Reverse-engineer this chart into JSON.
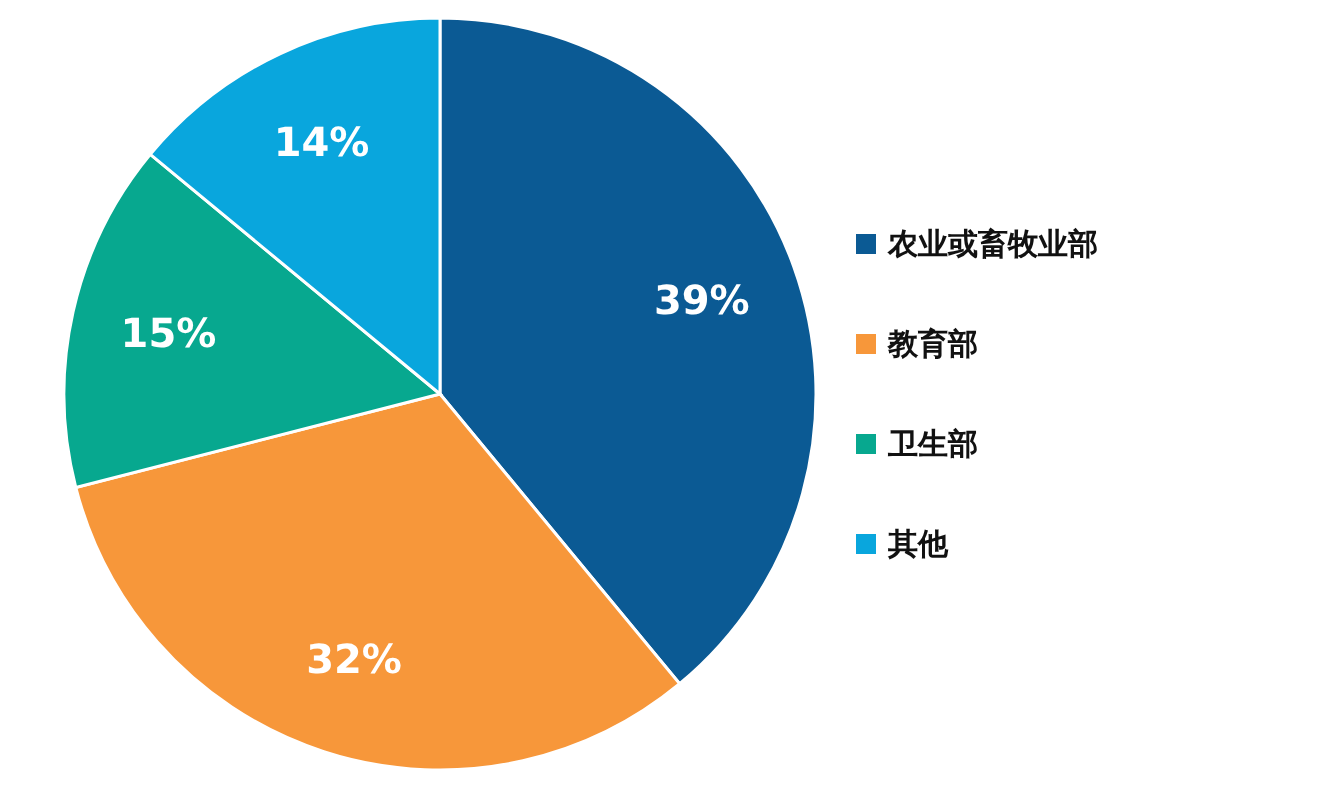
{
  "chart_data": {
    "type": "pie",
    "categories": [
      "农业或畜牧业部",
      "教育部",
      "卫生部",
      "其他"
    ],
    "values": [
      39,
      32,
      15,
      14
    ],
    "value_labels": [
      "39%",
      "32%",
      "15%",
      "14%"
    ],
    "colors": [
      "#0b5a94",
      "#f7973a",
      "#07a88f",
      "#09a6dd"
    ],
    "legend": "right"
  }
}
